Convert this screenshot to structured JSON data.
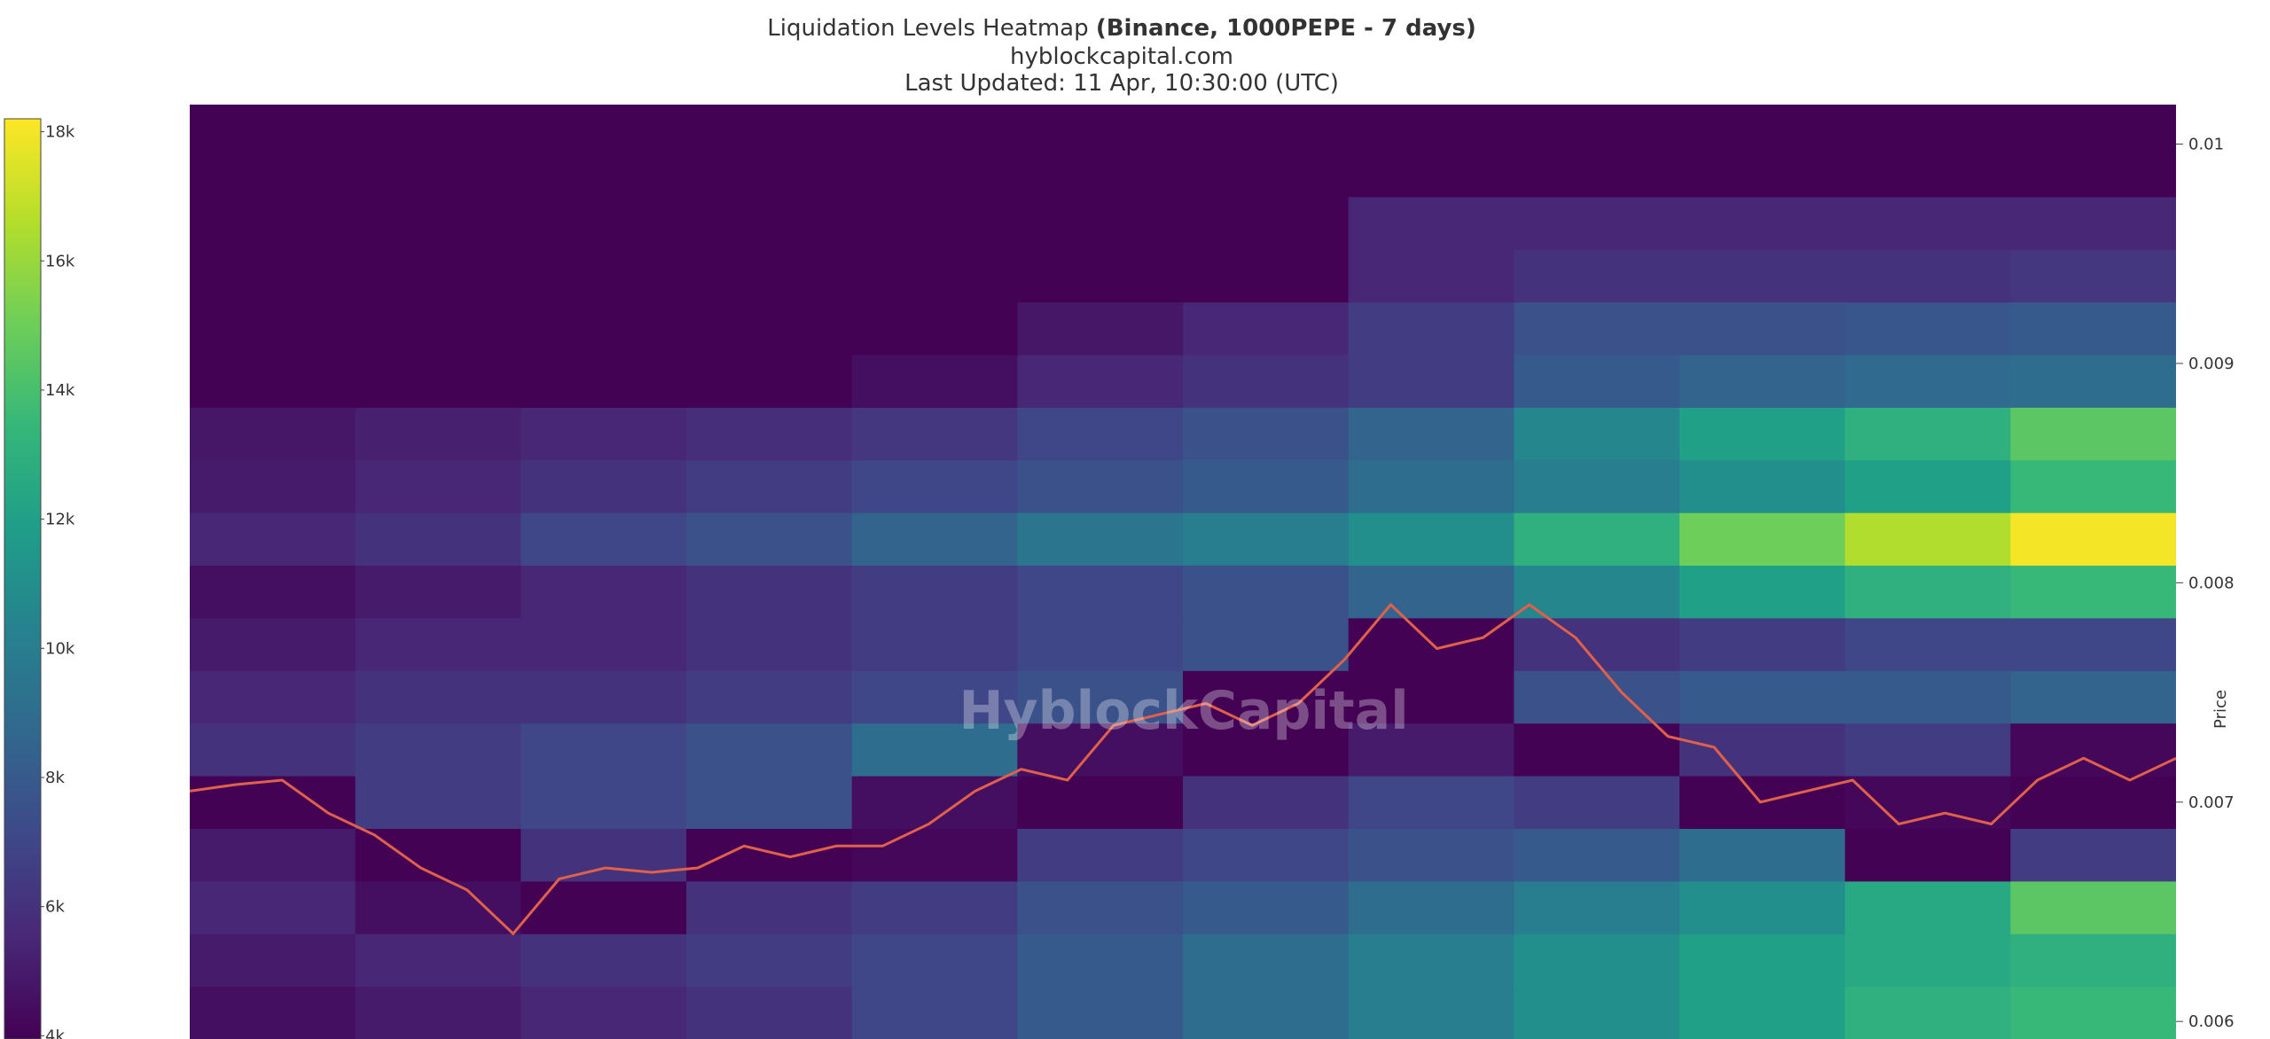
{
  "chart_data": {
    "type": "heatmap",
    "title": "Liquidation Levels Heatmap",
    "title_bold": "(Binance, 1000PEPE - 7 days)",
    "subtitle": "hyblockcapital.com",
    "updated": "Last Updated: 11 Apr, 10:30:00 (UTC)",
    "watermark": "HyblockCapital",
    "y_label": "Price",
    "ylim": [
      0.00592,
      0.01018
    ],
    "yticks": [
      0.006,
      0.007,
      0.008,
      0.009,
      0.01
    ],
    "zlim": [
      3950,
      18200
    ],
    "zticks": [
      {
        "value": 4000,
        "label": "4k"
      },
      {
        "value": 6000,
        "label": "6k"
      },
      {
        "value": 8000,
        "label": "8k"
      },
      {
        "value": 10000,
        "label": "10k"
      },
      {
        "value": 12000,
        "label": "12k"
      },
      {
        "value": 14000,
        "label": "14k"
      },
      {
        "value": 16000,
        "label": "16k"
      },
      {
        "value": 18000,
        "label": "18k"
      }
    ],
    "colorscale": [
      "#440154",
      "#482878",
      "#3e4989",
      "#31688e",
      "#26828e",
      "#1f9e89",
      "#35b779",
      "#6ece58",
      "#b5de2b",
      "#fde725"
    ],
    "y": [
      0.00604,
      0.00628,
      0.00652,
      0.00676,
      0.007,
      0.00724,
      0.00748,
      0.00772,
      0.00796,
      0.0082,
      0.00844,
      0.00868,
      0.00892,
      0.00916,
      0.0094,
      0.00964,
      0.00988,
      0.01012
    ],
    "z": [
      [
        4500,
        5000,
        5500,
        6000,
        7000,
        8000,
        9000,
        10000,
        11000,
        12000,
        13000,
        13500
      ],
      [
        5000,
        5500,
        6000,
        6500,
        7000,
        8000,
        9000,
        10000,
        11000,
        12000,
        12500,
        13000
      ],
      [
        5500,
        4500,
        4000,
        6000,
        6500,
        7500,
        8000,
        9000,
        10000,
        11000,
        12500,
        14500
      ],
      [
        5000,
        4000,
        6000,
        4000,
        4200,
        6500,
        7000,
        7500,
        8000,
        9000,
        4000,
        6500
      ],
      [
        4000,
        6500,
        7000,
        7500,
        4500,
        4000,
        6000,
        7000,
        6500,
        4000,
        4200,
        4000
      ],
      [
        6000,
        6500,
        7000,
        7500,
        9000,
        4500,
        4000,
        5000,
        4000,
        6000,
        6500,
        4200
      ],
      [
        5500,
        6000,
        6000,
        6500,
        7000,
        7500,
        4000,
        4000,
        7500,
        8000,
        8000,
        8500
      ],
      [
        5000,
        5500,
        5500,
        6000,
        6500,
        7000,
        7500,
        4000,
        6000,
        6500,
        7000,
        7000
      ],
      [
        4500,
        5000,
        5500,
        6000,
        6500,
        7000,
        7500,
        8500,
        10500,
        12000,
        13000,
        13500
      ],
      [
        5500,
        6000,
        7000,
        7500,
        8500,
        9500,
        10000,
        11000,
        13000,
        15000,
        16500,
        18000
      ],
      [
        5000,
        5500,
        6000,
        6500,
        7000,
        7500,
        8000,
        9000,
        10000,
        11000,
        12000,
        13500
      ],
      [
        4800,
        5200,
        5500,
        5800,
        6200,
        7000,
        7500,
        8500,
        10500,
        12000,
        13000,
        14500
      ],
      [
        4000,
        4000,
        4000,
        4000,
        4500,
        5500,
        6000,
        6500,
        8000,
        8500,
        8800,
        9000
      ],
      [
        4000,
        4000,
        4000,
        4000,
        4000,
        4800,
        5500,
        6500,
        7500,
        7500,
        7800,
        8000
      ],
      [
        4000,
        4000,
        4000,
        4000,
        4000,
        4000,
        4000,
        5500,
        6000,
        6000,
        6000,
        6200
      ],
      [
        4000,
        4000,
        4000,
        4000,
        4000,
        4000,
        4000,
        5500,
        5500,
        5500,
        5500,
        5500
      ],
      [
        4000,
        4000,
        4000,
        4000,
        4000,
        4000,
        4000,
        4000,
        4000,
        4000,
        4000,
        4000
      ],
      [
        4000,
        4000,
        4000,
        4000,
        4000,
        4000,
        4000,
        4000,
        4000,
        4000,
        4000,
        4000
      ]
    ],
    "price": {
      "color": "#e0604a",
      "values": [
        0.00705,
        0.00708,
        0.0071,
        0.00695,
        0.00685,
        0.0067,
        0.0066,
        0.0064,
        0.00665,
        0.0067,
        0.00668,
        0.0067,
        0.0068,
        0.00675,
        0.0068,
        0.0068,
        0.0069,
        0.00705,
        0.00715,
        0.0071,
        0.00735,
        0.0074,
        0.00745,
        0.00735,
        0.00745,
        0.00765,
        0.0079,
        0.0077,
        0.00775,
        0.0079,
        0.00775,
        0.0075,
        0.0073,
        0.00725,
        0.007,
        0.00705,
        0.0071,
        0.0069,
        0.00695,
        0.0069,
        0.0071,
        0.0072,
        0.0071,
        0.0072
      ]
    }
  }
}
